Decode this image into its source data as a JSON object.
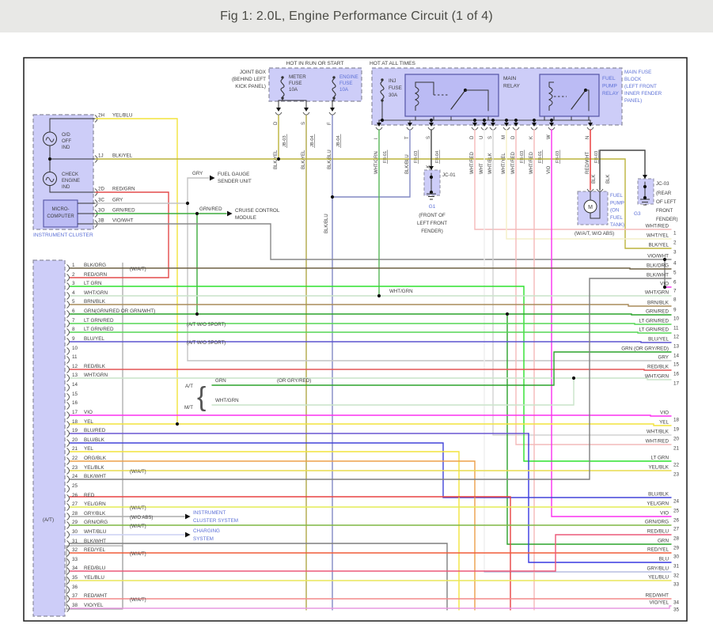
{
  "title": "Fig 1: 2.0L, Engine Performance Circuit (1 of 4)",
  "headers": {
    "hot_in_run": "HOT IN RUN OR START",
    "hot_all_times": "HOT AT ALL TIMES"
  },
  "joint_box": {
    "name": [
      "JOINT BOX",
      "(BEHIND LEFT",
      "KICK PANEL)"
    ],
    "fuses": [
      {
        "name": [
          "METER",
          "FUSE"
        ],
        "amp": "10A",
        "blue": false
      },
      {
        "name": [
          "ENGINE",
          "FUSE"
        ],
        "amp": "10A",
        "blue": true
      }
    ],
    "pins": [
      {
        "wire": "BLK/YEL",
        "pin": "D",
        "ref": "JB-03"
      },
      {
        "wire": "BLK/YEL",
        "pin": "S",
        "ref": "JB-04"
      },
      {
        "wire": "BLK/BLU",
        "pin": "F",
        "ref": "JB-04"
      }
    ]
  },
  "fuse_block": {
    "name": [
      "MAIN FUSE",
      "BLOCK",
      "(LEFT FRONT",
      "INNER FENDER",
      "PANEL)"
    ],
    "inj_fuse": [
      "INJ",
      "FUSE",
      "30A"
    ],
    "main_relay": [
      "MAIN",
      "RELAY"
    ],
    "fuel_pump_relay": [
      "FUEL",
      "PUMP",
      "RELAY"
    ],
    "pins": [
      {
        "wire": "WHT/GRN",
        "pin": "I",
        "ref": "FB-01"
      },
      {
        "wire": "BLK/BLU",
        "pin": "T",
        "ref": "FB-03"
      },
      {
        "wire": "BLK",
        "pin": "S",
        "ref": "FB-04"
      },
      {
        "wire": "WHT/RED",
        "pin": "D",
        "ref": ""
      },
      {
        "wire": "WHT",
        "pin": "U",
        "ref": ""
      },
      {
        "wire": "WHT/BLK",
        "pin": "S",
        "ref": ""
      },
      {
        "wire": "WHT/YEL",
        "pin": "M",
        "ref": ""
      },
      {
        "wire": "WHT/RED",
        "pin": "D",
        "ref": "FB-03"
      },
      {
        "wire": "WHT/RED",
        "pin": "K",
        "ref": "FB-01"
      },
      {
        "wire": "VIO",
        "pin": "W",
        "ref": "FB-03"
      },
      {
        "wire": "RED/WHT",
        "pin": "N",
        "ref": "FB-03"
      }
    ]
  },
  "cluster": {
    "label": "INSTRUMENT CLUSTER",
    "indicators": [
      [
        "O/D",
        "OFF",
        "IND"
      ],
      [
        "CHECK",
        "ENGINE",
        "IND"
      ]
    ],
    "micro": [
      "MICRO-",
      "COMPUTER"
    ],
    "pins": [
      {
        "id": "2H",
        "wire": "YEL/BLU"
      },
      {
        "id": "1J",
        "wire": "BLK/YEL"
      },
      {
        "id": "2D",
        "wire": "RED/GRN"
      },
      {
        "id": "3C",
        "wire": "GRY"
      },
      {
        "id": "3O",
        "wire": "GRN/RED"
      },
      {
        "id": "3B",
        "wire": "VIO/WHT"
      }
    ]
  },
  "branches": {
    "fuel_gauge": {
      "wire": "GRY",
      "label": [
        "FUEL GAUGE",
        "SENDER UNIT"
      ]
    },
    "cruise": {
      "wire": "GRN/RED",
      "label": [
        "CRUISE CONTROL",
        "MODULE"
      ]
    },
    "instrument": [
      "INSTRUMENT",
      "CLUSTER SYSTEM"
    ],
    "charging": [
      "CHARGING",
      "SYSTEM"
    ]
  },
  "grounds": {
    "jc01": {
      "id": "JC-01",
      "g": "G1",
      "loc": [
        "(FRONT OF",
        "LEFT FRONT",
        "FENDER)"
      ]
    },
    "jc03": {
      "id": "JC-03",
      "g": "G3",
      "loc": [
        "(REAR",
        "OF LEFT",
        "FRONT",
        "FENDER)"
      ]
    }
  },
  "fuel_pump": {
    "label": [
      "FUEL",
      "PUMP",
      "(ON",
      "FUEL",
      "TANK)"
    ],
    "motor": "M",
    "note": "(W/A/T, W/O ABS)",
    "wires": [
      "RED/WHT",
      "BLK",
      "BLK"
    ]
  },
  "trans": {
    "at": "A/T",
    "mt": "M/T",
    "at_wire": "GRN",
    "at_alt": "(OR GRY/RED)",
    "mt_wire": "WHT/GRN"
  },
  "mid_labels": {
    "blk_blu": "BLK/BLU",
    "wht_grn": "WHT/GRN"
  },
  "left_connector": {
    "group": "(A/T)",
    "rows": [
      {
        "n": 1,
        "label": "BLK/ORG",
        "note": "(W/A/T)"
      },
      {
        "n": 2,
        "label": "RED/GRN"
      },
      {
        "n": 3,
        "label": "LT GRN"
      },
      {
        "n": 4,
        "label": "WHT/GRN"
      },
      {
        "n": 5,
        "label": "BRN/BLK"
      },
      {
        "n": 6,
        "label": "GRN(GRN/RED OR GRN/WHT)"
      },
      {
        "n": 7,
        "label": "LT GRN/RED",
        "note": "(A/T W/O SPORT)",
        "note_in": true
      },
      {
        "n": 8,
        "label": "LT GRN/RED"
      },
      {
        "n": 9,
        "label": "BLU/YEL",
        "note": "(A/T W/O SPORT)",
        "note_in": true
      },
      {
        "n": 10,
        "label": ""
      },
      {
        "n": 11,
        "label": ""
      },
      {
        "n": 12,
        "label": "RED/BLK"
      },
      {
        "n": 13,
        "label": "WHT/GRN"
      },
      {
        "n": 14,
        "label": ""
      },
      {
        "n": 15,
        "label": ""
      },
      {
        "n": 16,
        "label": ""
      },
      {
        "n": 17,
        "label": "VIO"
      },
      {
        "n": 18,
        "label": "YEL"
      },
      {
        "n": 19,
        "label": "BLU/RED"
      },
      {
        "n": 20,
        "label": "BLU/BLK"
      },
      {
        "n": 21,
        "label": "YEL"
      },
      {
        "n": 22,
        "label": "ORG/BLK"
      },
      {
        "n": 23,
        "label": "YEL/BLK",
        "note": "(W/A/T)"
      },
      {
        "n": 24,
        "label": "BLK/WHT"
      },
      {
        "n": 25,
        "label": ""
      },
      {
        "n": 26,
        "label": "RED"
      },
      {
        "n": 27,
        "label": "YEL/GRN",
        "note": "(W/A/T)"
      },
      {
        "n": 28,
        "label": "GRY/BLK",
        "note": "(W/O ABS)"
      },
      {
        "n": 29,
        "label": "GRN/ORG",
        "note": "(W/A/T)"
      },
      {
        "n": 30,
        "label": "WHT/BLU"
      },
      {
        "n": 31,
        "label": "BLK/WHT"
      },
      {
        "n": 32,
        "label": "RED/YEL",
        "note": "(W/A/T)"
      },
      {
        "n": 33,
        "label": ""
      },
      {
        "n": 34,
        "label": "RED/BLU"
      },
      {
        "n": 35,
        "label": "YEL/BLU"
      },
      {
        "n": 36,
        "label": ""
      },
      {
        "n": 37,
        "label": "RED/WHT",
        "note": "(W/A/T)"
      },
      {
        "n": 38,
        "label": "VIO/YEL"
      }
    ]
  },
  "right_rows": [
    {
      "n": 1,
      "label": "WHT/RED"
    },
    {
      "n": 2,
      "label": "WHT/YEL"
    },
    {
      "n": 3,
      "label": "BLK/YEL"
    },
    {
      "n": 4,
      "label": "VIO/WHT"
    },
    {
      "n": 5,
      "label": "BLK/ORG"
    },
    {
      "n": 6,
      "label": "BLK/WHT"
    },
    {
      "n": 7,
      "label": "VIO"
    },
    {
      "n": 8,
      "label": "WHT/GRN"
    },
    {
      "n": 9,
      "label": "BRN/BLK"
    },
    {
      "n": 10,
      "label": "GRN/RED"
    },
    {
      "n": 11,
      "label": "LT GRN/RED"
    },
    {
      "n": 12,
      "label": "LT GRN/RED"
    },
    {
      "n": 13,
      "label": "BLU/YEL"
    },
    {
      "n": 14,
      "label": "GRN (OR GRY/RED)"
    },
    {
      "n": 15,
      "label": "GRY"
    },
    {
      "n": 16,
      "label": "RED/BLK"
    },
    {
      "n": 17,
      "label": "WHT/GRN"
    },
    {
      "n": 18,
      "label": "VIO"
    },
    {
      "n": 19,
      "label": "YEL"
    },
    {
      "n": 20,
      "label": "WHT/BLK"
    },
    {
      "n": 21,
      "label": "WHT/RED"
    },
    {
      "n": 22,
      "label": "LT GRN"
    },
    {
      "n": 23,
      "label": "YEL/BLK"
    },
    {
      "n": 24,
      "label": "BLU/BLK"
    },
    {
      "n": 25,
      "label": "YEL/GRN"
    },
    {
      "n": 26,
      "label": "VIO"
    },
    {
      "n": 27,
      "label": "GRN/ORG"
    },
    {
      "n": 28,
      "label": "RED/BLU"
    },
    {
      "n": 29,
      "label": "GRN"
    },
    {
      "n": 30,
      "label": "RED/YEL"
    },
    {
      "n": 31,
      "label": "BLU"
    },
    {
      "n": 32,
      "label": "GRY/BLU"
    },
    {
      "n": 33,
      "label": "YEL/BLU"
    },
    {
      "n": 34,
      "label": "RED/WHT"
    },
    {
      "n": 35,
      "label": "VIO/YEL"
    }
  ],
  "wire_colors": {
    "BLK/ORG": "#6e6044",
    "RED/GRN": "#e34b4b",
    "LT GRN": "#2ee22e",
    "WHT/GRN": "#c9e4c9",
    "BRN/BLK": "#a98c5a",
    "GRN": "#2ca32c",
    "LT GRN/RED": "#55d655",
    "BLU/YEL": "#5b53cf",
    "RED/BLK": "#e35555",
    "VIO": "#fb30f0",
    "YEL": "#f2e43c",
    "BLU/RED": "#6a57d2",
    "BLU/BLK": "#4244d8",
    "ORG/BLK": "#eda04a",
    "YEL/BLK": "#e8dc4e",
    "BLK/WHT": "#7f7f7f",
    "RED": "#e84242",
    "YEL/GRN": "#e4ec55",
    "GRY/BLK": "#ababab",
    "GRN/ORG": "#7fb743",
    "WHT/BLU": "#cbd0f4",
    "RED/YEL": "#f05c38",
    "RED/BLU": "#ec5878",
    "YEL/BLU": "#eae65a",
    "RED/WHT": "#f48a8a",
    "VIO/YEL": "#e79ae0",
    "WHT/RED": "#f4baba",
    "WHT/YEL": "#f4f0c8",
    "BLK/YEL": "#bcb43c",
    "BLK/YEL2": "#b0a848",
    "BLK/BLU": "#8289c4",
    "GRY": "#c4c4c4",
    "GRN/RED": "#3dab3d",
    "WHT/BLK": "#d2d2d2",
    "WHT": "#eeeeee",
    "BLU": "#3838e2",
    "GRY/BLU": "#b7bde0",
    "BLK": "#454545",
    "RED/WHT_N": "#e83434",
    "WHT/GRN_FB": "#57b757"
  },
  "ui_colors": {
    "box_fill": "#cdcdf8",
    "box_fill2": "#bbbbf4",
    "border_dash": "#8b8b9e",
    "border_solid": "#5353a6",
    "blue_text": "#5b6fd6",
    "dark_text": "#3c3c3c",
    "bar_bg": "#e8e8e6"
  }
}
